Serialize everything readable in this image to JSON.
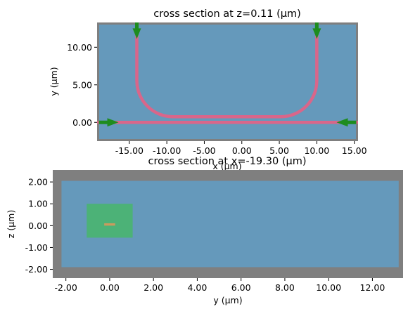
{
  "colors": {
    "frame_gray": "#7f7f7f",
    "background_blue": "#6599bb",
    "waveguide_pink": "#d9668a",
    "arrow_green": "#1e8c1e",
    "source_green": "#4cb277",
    "core_orange": "#c99b5e",
    "figure_bg": "#ffffff"
  },
  "chart_data": [
    {
      "type": "heatmap",
      "title": "cross section at z=0.11 (μm)",
      "xlabel": "x (μm)",
      "ylabel": "y (μm)",
      "xlim": [
        -19.3,
        15.5
      ],
      "ylim": [
        -2.5,
        13.3
      ],
      "simulation_domain": {
        "x": [
          -19.3,
          15.5
        ],
        "y": [
          -2.5,
          13.3
        ]
      },
      "xticks": [
        -15,
        -10,
        -5,
        0,
        5,
        10,
        15
      ],
      "xticklabels": [
        "-15.00",
        "-10.00",
        "-5.00",
        "0.00",
        "5.00",
        "10.00",
        "15.00"
      ],
      "yticks": [
        0,
        5,
        10
      ],
      "yticklabels": [
        "0.00",
        "5.00",
        "10.00"
      ],
      "waveguide_straight": {
        "x": [
          -19.3,
          15.5
        ],
        "y": 0.0
      },
      "waveguide_bend": {
        "left_vertical_x": -14.0,
        "right_vertical_x": 10.0,
        "top_y": 13.3,
        "bottom_y": 0.75,
        "bend_radius": 4.8
      },
      "arrows": [
        {
          "name": "port-top-left",
          "x": -14.0,
          "y": 12.7,
          "direction": "down"
        },
        {
          "name": "port-top-right",
          "x": 10.0,
          "y": 12.7,
          "direction": "down"
        },
        {
          "name": "port-left",
          "x": -18.5,
          "y": 0.0,
          "direction": "right"
        },
        {
          "name": "port-right",
          "x": 14.7,
          "y": 0.0,
          "direction": "left"
        }
      ]
    },
    {
      "type": "heatmap",
      "title": "cross section at x=-19.30 (μm)",
      "xlabel": "y (μm)",
      "ylabel": "z (μm)",
      "xlim": [
        -2.6,
        13.4
      ],
      "ylim": [
        -2.4,
        2.55
      ],
      "simulation_domain": {
        "y": [
          -2.2,
          13.2
        ],
        "z": [
          -1.9,
          2.05
        ]
      },
      "xticks": [
        -2,
        0,
        2,
        4,
        6,
        8,
        10,
        12
      ],
      "xticklabels": [
        "-2.00",
        "0.00",
        "2.00",
        "4.00",
        "6.00",
        "8.00",
        "10.00",
        "12.00"
      ],
      "yticks": [
        -2,
        -1,
        0,
        1,
        2
      ],
      "yticklabels": [
        "-2.00",
        "-1.00",
        "0.00",
        "1.00",
        "2.00"
      ],
      "source_box": {
        "y": [
          -1.05,
          1.05
        ],
        "z": [
          -0.55,
          1.0
        ]
      },
      "core": {
        "y": [
          -0.25,
          0.25
        ],
        "z": [
          0.0,
          0.11
        ]
      }
    }
  ]
}
